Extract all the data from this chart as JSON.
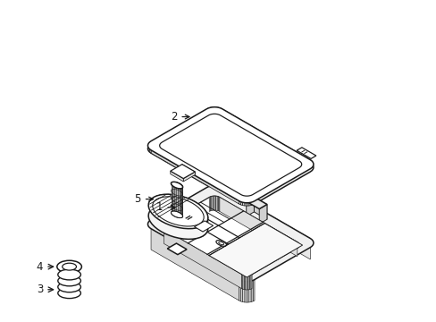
{
  "background_color": "#ffffff",
  "line_color": "#1a1a1a",
  "line_width": 1.1,
  "figsize": [
    4.89,
    3.6
  ],
  "dpi": 100,
  "iso": {
    "sx": 0.55,
    "sy": 0.28
  }
}
